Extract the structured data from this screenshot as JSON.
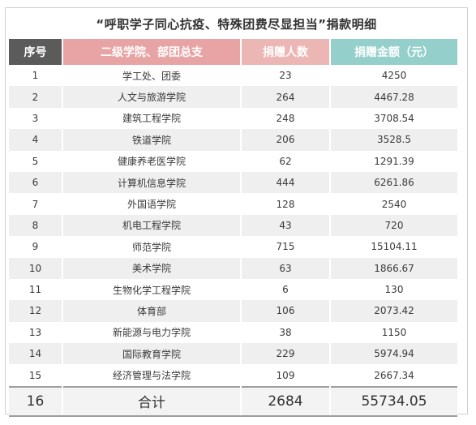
{
  "title": "“呼职学子同心抗疫、特殊团费尽显担当”捐款明细",
  "headers": {
    "seq": "序号",
    "unit": "二级学院、部团总支",
    "count": "捐赠人数",
    "amount": "捐赠金额（元）"
  },
  "rows": [
    {
      "seq": "1",
      "unit": "学工处、团委",
      "count": "23",
      "amount": "4250"
    },
    {
      "seq": "2",
      "unit": "人文与旅游学院",
      "count": "264",
      "amount": "4467.28"
    },
    {
      "seq": "3",
      "unit": "建筑工程学院",
      "count": "248",
      "amount": "3708.54"
    },
    {
      "seq": "4",
      "unit": "铁道学院",
      "count": "206",
      "amount": "3528.5"
    },
    {
      "seq": "5",
      "unit": "健康养老医学院",
      "count": "62",
      "amount": "1291.39"
    },
    {
      "seq": "6",
      "unit": "计算机信息学院",
      "count": "444",
      "amount": "6261.86"
    },
    {
      "seq": "7",
      "unit": "外国语学院",
      "count": "128",
      "amount": "2540"
    },
    {
      "seq": "8",
      "unit": "机电工程学院",
      "count": "43",
      "amount": "720"
    },
    {
      "seq": "9",
      "unit": "师范学院",
      "count": "715",
      "amount": "15104.11"
    },
    {
      "seq": "10",
      "unit": "美术学院",
      "count": "63",
      "amount": "1866.67"
    },
    {
      "seq": "11",
      "unit": "生物化学工程学院",
      "count": "6",
      "amount": "130"
    },
    {
      "seq": "12",
      "unit": "体育部",
      "count": "106",
      "amount": "2073.42"
    },
    {
      "seq": "13",
      "unit": "新能源与电力学院",
      "count": "38",
      "amount": "1150"
    },
    {
      "seq": "14",
      "unit": "国际教育学院",
      "count": "229",
      "amount": "5974.94"
    },
    {
      "seq": "15",
      "unit": "经济管理与法学院",
      "count": "109",
      "amount": "2667.34"
    }
  ],
  "total": {
    "seq": "16",
    "unit": "合计",
    "count": "2684",
    "amount": "55734.05"
  },
  "colors": {
    "header_seq": "#5b5b5b",
    "header_unit": "#e8a4a5",
    "header_count": "#ecb6b4",
    "header_amount": "#94cfcb",
    "row_alt": "#efefef"
  }
}
